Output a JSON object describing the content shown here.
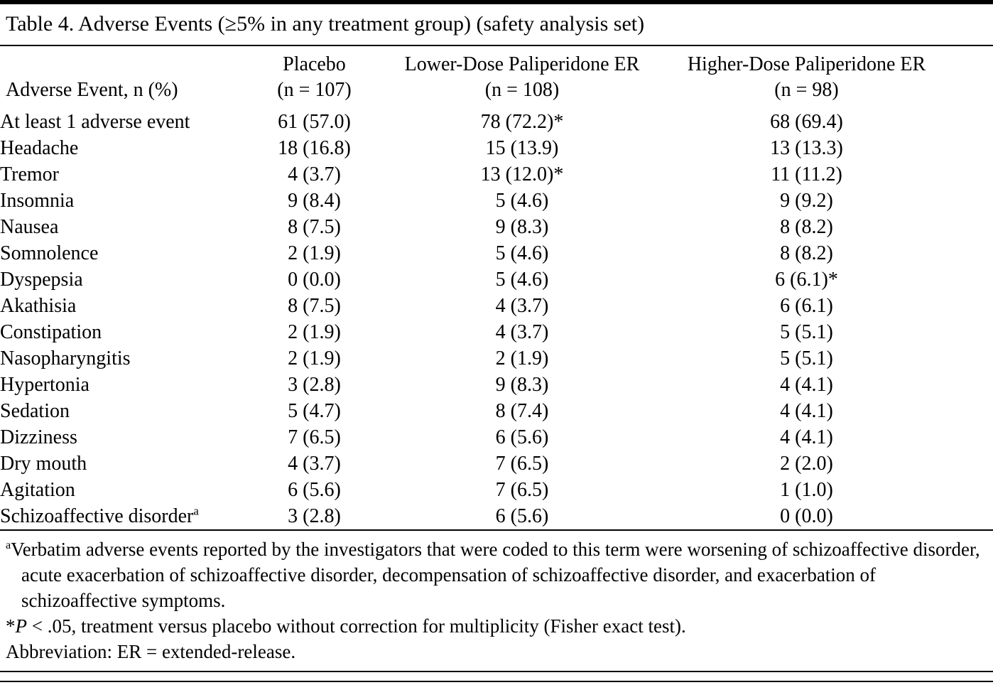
{
  "table": {
    "title": "Table 4. Adverse Events (≥5% in any treatment group) (safety analysis set)",
    "row_header_label": "Adverse Event, n (%)",
    "columns": [
      {
        "name": "Placebo",
        "n": "(n = 107)"
      },
      {
        "name": "Lower-Dose Paliperidone ER",
        "n": "(n = 108)"
      },
      {
        "name": "Higher-Dose Paliperidone ER",
        "n": "(n = 98)"
      }
    ],
    "rows": [
      {
        "label": "At least 1 adverse event",
        "sup": "",
        "values": [
          "61 (57.0)",
          "78 (72.2)*",
          "68 (69.4)"
        ]
      },
      {
        "label": "Headache",
        "sup": "",
        "values": [
          "18 (16.8)",
          "15 (13.9)",
          "13 (13.3)"
        ]
      },
      {
        "label": "Tremor",
        "sup": "",
        "values": [
          "4 (3.7)",
          "13 (12.0)*",
          "11 (11.2)"
        ]
      },
      {
        "label": "Insomnia",
        "sup": "",
        "values": [
          "9 (8.4)",
          "5 (4.6)",
          "9 (9.2)"
        ]
      },
      {
        "label": "Nausea",
        "sup": "",
        "values": [
          "8 (7.5)",
          "9 (8.3)",
          "8 (8.2)"
        ]
      },
      {
        "label": "Somnolence",
        "sup": "",
        "values": [
          "2 (1.9)",
          "5 (4.6)",
          "8 (8.2)"
        ]
      },
      {
        "label": "Dyspepsia",
        "sup": "",
        "values": [
          "0 (0.0)",
          "5 (4.6)",
          "6 (6.1)*"
        ]
      },
      {
        "label": "Akathisia",
        "sup": "",
        "values": [
          "8 (7.5)",
          "4 (3.7)",
          "6 (6.1)"
        ]
      },
      {
        "label": "Constipation",
        "sup": "",
        "values": [
          "2 (1.9)",
          "4 (3.7)",
          "5 (5.1)"
        ]
      },
      {
        "label": "Nasopharyngitis",
        "sup": "",
        "values": [
          "2 (1.9)",
          "2 (1.9)",
          "5 (5.1)"
        ]
      },
      {
        "label": "Hypertonia",
        "sup": "",
        "values": [
          "3 (2.8)",
          "9 (8.3)",
          "4 (4.1)"
        ]
      },
      {
        "label": "Sedation",
        "sup": "",
        "values": [
          "5 (4.7)",
          "8 (7.4)",
          "4 (4.1)"
        ]
      },
      {
        "label": "Dizziness",
        "sup": "",
        "values": [
          "7 (6.5)",
          "6 (5.6)",
          "4 (4.1)"
        ]
      },
      {
        "label": "Dry mouth",
        "sup": "",
        "values": [
          "4 (3.7)",
          "7 (6.5)",
          "2 (2.0)"
        ]
      },
      {
        "label": "Agitation",
        "sup": "",
        "values": [
          "6 (5.6)",
          "7 (6.5)",
          "1 (1.0)"
        ]
      },
      {
        "label": "Schizoaffective disorder",
        "sup": "a",
        "values": [
          "3 (2.8)",
          "6 (5.6)",
          "0 (0.0)"
        ]
      }
    ],
    "footnotes": {
      "a": {
        "marker": "a",
        "text": "Verbatim adverse events reported by the investigators that were coded to this term were worsening of schizoaffective disorder, acute exacerbation of schizoaffective disorder, decompensation of schizoaffective disorder, and exacerbation of schizoaffective symptoms."
      },
      "sig": {
        "marker": "*",
        "italic": "P",
        "text": " < .05, treatment versus placebo without correction for multiplicity (Fisher exact test)."
      },
      "abbr": "Abbreviation: ER = extended-release."
    }
  }
}
